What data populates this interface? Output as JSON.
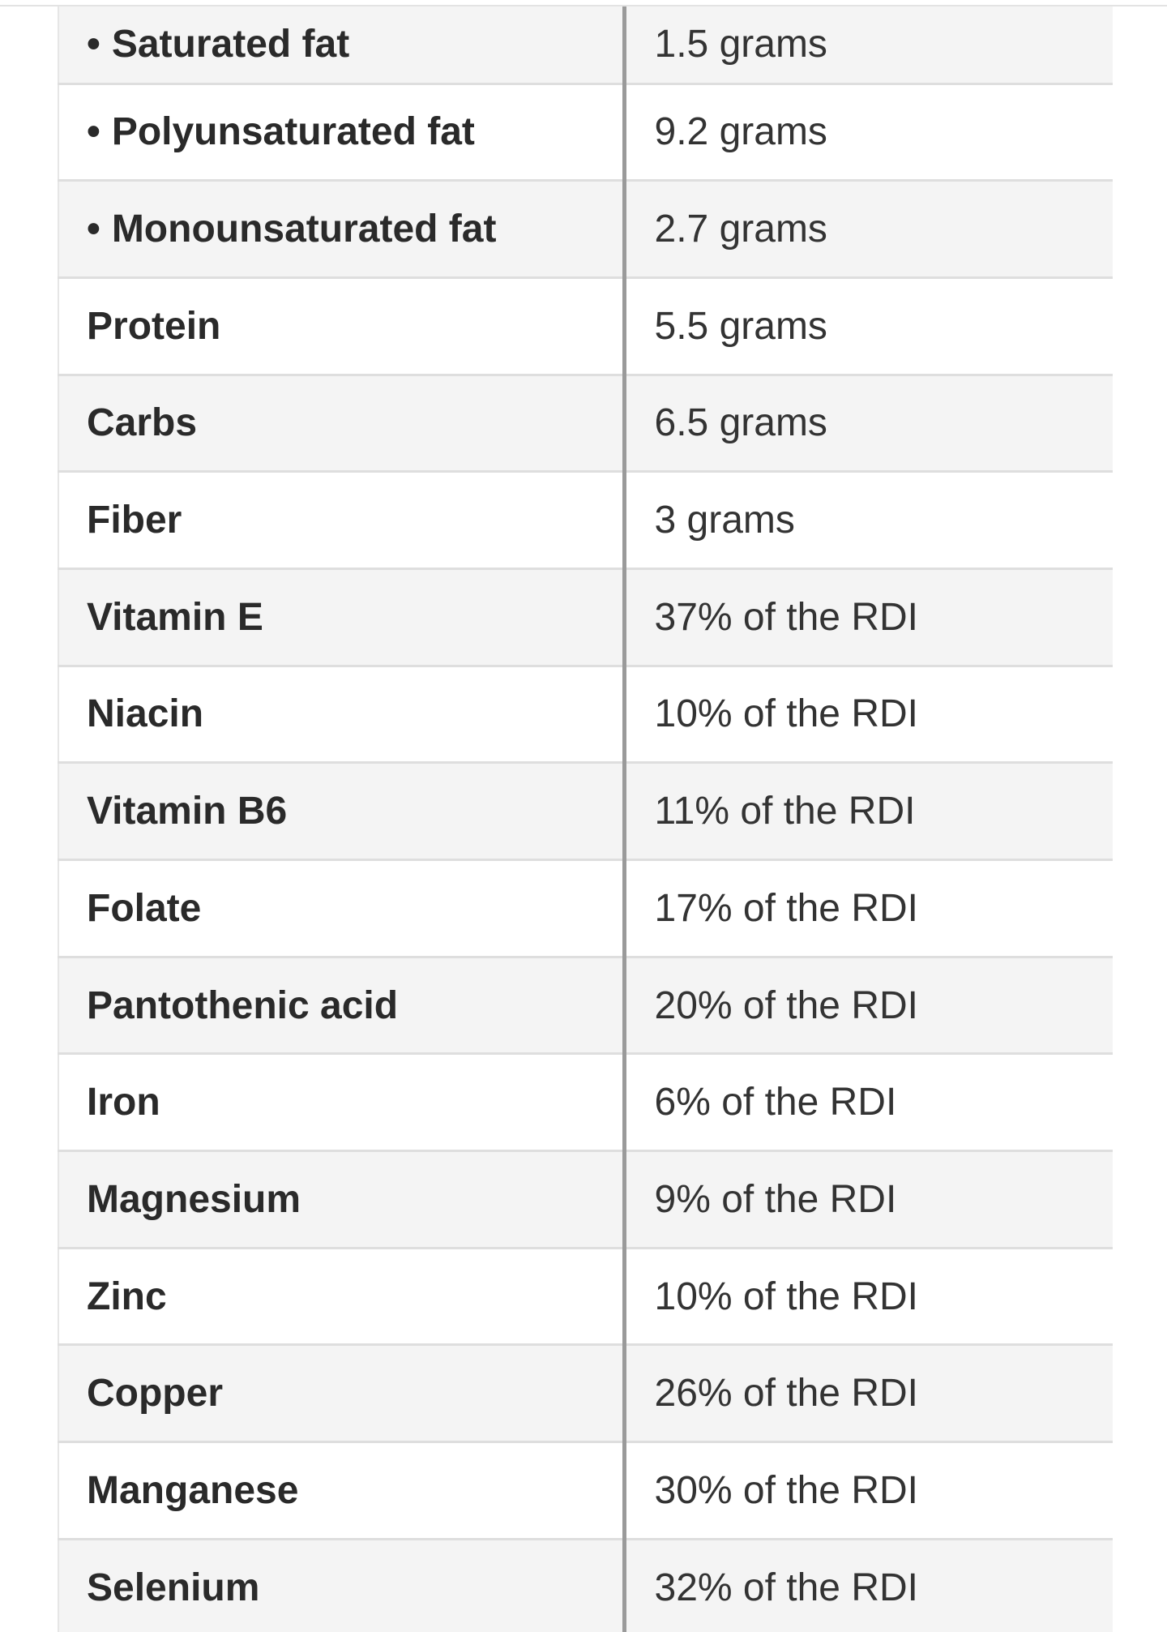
{
  "rows": [
    {
      "bullet": "•",
      "label": "Saturated fat",
      "value": "1.5 grams"
    },
    {
      "bullet": "•",
      "label": "Polyunsaturated fat",
      "value": "9.2 grams"
    },
    {
      "bullet": "•",
      "label": "Monounsaturated fat",
      "value": "2.7 grams"
    },
    {
      "bullet": "",
      "label": "Protein",
      "value": "5.5 grams"
    },
    {
      "bullet": "",
      "label": "Carbs",
      "value": "6.5 grams"
    },
    {
      "bullet": "",
      "label": "Fiber",
      "value": "3 grams"
    },
    {
      "bullet": "",
      "label": "Vitamin E",
      "value": "37% of the RDI"
    },
    {
      "bullet": "",
      "label": "Niacin",
      "value": "10% of the RDI"
    },
    {
      "bullet": "",
      "label": "Vitamin B6",
      "value": "11% of the RDI"
    },
    {
      "bullet": "",
      "label": "Folate",
      "value": "17% of the RDI"
    },
    {
      "bullet": "",
      "label": "Pantothenic acid",
      "value": "20% of the RDI"
    },
    {
      "bullet": "",
      "label": "Iron",
      "value": "6% of the RDI"
    },
    {
      "bullet": "",
      "label": "Magnesium",
      "value": "9% of the RDI"
    },
    {
      "bullet": "",
      "label": "Zinc",
      "value": "10% of the RDI"
    },
    {
      "bullet": "",
      "label": "Copper",
      "value": "26% of the RDI"
    },
    {
      "bullet": "",
      "label": "Manganese",
      "value": "30% of the RDI"
    },
    {
      "bullet": "",
      "label": "Selenium",
      "value": "32% of the RDI"
    }
  ]
}
